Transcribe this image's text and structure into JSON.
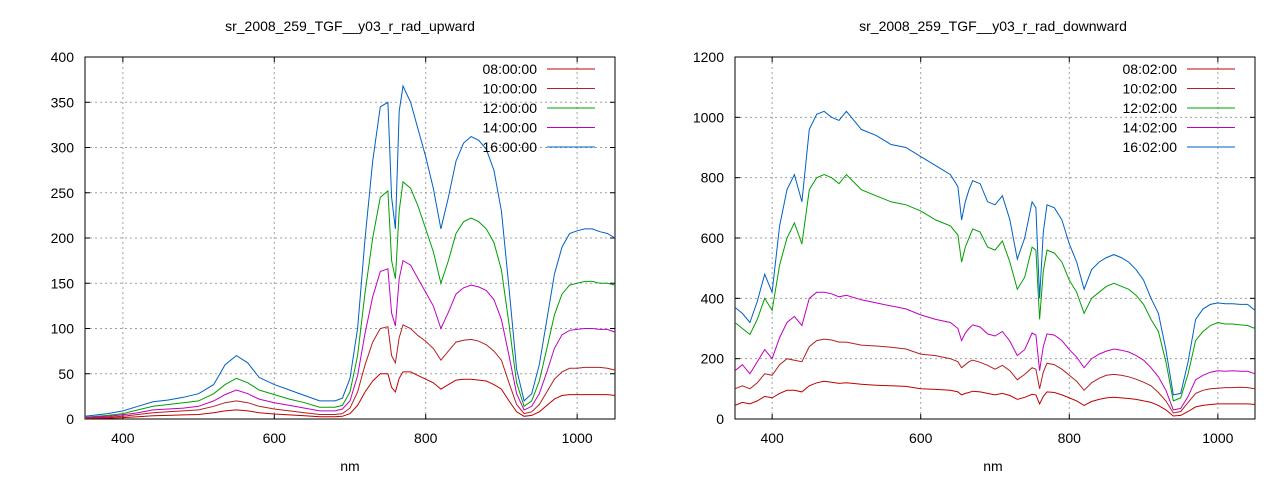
{
  "chart_data": [
    {
      "type": "line",
      "title": "sr_2008_259_TGF__y03_r_rad_upward",
      "xlabel": "nm",
      "ylabel": "",
      "xlim": [
        350,
        1050
      ],
      "ylim": [
        0,
        400
      ],
      "xticks": [
        400,
        600,
        800,
        1000
      ],
      "yticks": [
        0,
        50,
        100,
        150,
        200,
        250,
        300,
        350,
        400
      ],
      "grid": true,
      "legend_position": "top-right",
      "x": [
        350,
        380,
        400,
        420,
        440,
        460,
        480,
        500,
        520,
        535,
        550,
        565,
        580,
        600,
        620,
        640,
        660,
        680,
        690,
        700,
        710,
        720,
        730,
        740,
        750,
        755,
        760,
        765,
        770,
        780,
        790,
        800,
        810,
        820,
        830,
        840,
        850,
        860,
        870,
        880,
        890,
        900,
        910,
        920,
        930,
        940,
        950,
        960,
        970,
        980,
        990,
        1000,
        1010,
        1020,
        1030,
        1040,
        1050
      ],
      "series": [
        {
          "name": "08:00:00",
          "color": "#c00000",
          "values": [
            0.5,
            1,
            1.5,
            2.5,
            3.5,
            4,
            4.5,
            5,
            7,
            9,
            10,
            9,
            7,
            5.5,
            4.5,
            3.5,
            2.5,
            2.5,
            3,
            6,
            15,
            30,
            42,
            50,
            50,
            35,
            30,
            45,
            52,
            52,
            48,
            44,
            40,
            33,
            38,
            43,
            44,
            44,
            43,
            42,
            38,
            33,
            20,
            8,
            3,
            4,
            8,
            15,
            22,
            26,
            27,
            27,
            27,
            27,
            27,
            27,
            26
          ]
        },
        {
          "name": "10:00:00",
          "color": "#b22020",
          "values": [
            1,
            2,
            3,
            5,
            7,
            8,
            9,
            10,
            14,
            18,
            20,
            18,
            14,
            11,
            9,
            7,
            5,
            5,
            6,
            12,
            30,
            60,
            85,
            100,
            102,
            70,
            62,
            90,
            104,
            100,
            92,
            86,
            78,
            65,
            75,
            85,
            87,
            88,
            86,
            82,
            75,
            65,
            40,
            16,
            6,
            8,
            16,
            30,
            44,
            52,
            56,
            56,
            57,
            57,
            57,
            56,
            54
          ]
        },
        {
          "name": "12:00:00",
          "color": "#00a000",
          "values": [
            2,
            4,
            6,
            10,
            14,
            16,
            18,
            20,
            28,
            38,
            45,
            40,
            32,
            27,
            22,
            18,
            13,
            13,
            15,
            30,
            70,
            140,
            200,
            245,
            252,
            175,
            155,
            230,
            262,
            255,
            235,
            210,
            185,
            150,
            175,
            205,
            218,
            222,
            218,
            210,
            195,
            165,
            105,
            40,
            14,
            20,
            42,
            78,
            115,
            138,
            148,
            150,
            152,
            152,
            150,
            150,
            148
          ]
        },
        {
          "name": "14:00:00",
          "color": "#c000c0",
          "values": [
            1.5,
            3,
            4.5,
            7,
            10,
            11,
            12,
            14,
            20,
            27,
            32,
            28,
            22,
            18,
            15,
            12,
            9,
            9,
            11,
            20,
            48,
            95,
            135,
            163,
            166,
            117,
            103,
            155,
            175,
            170,
            155,
            140,
            125,
            100,
            118,
            138,
            145,
            148,
            146,
            142,
            132,
            110,
            70,
            28,
            10,
            14,
            28,
            52,
            78,
            93,
            98,
            99,
            100,
            100,
            99,
            99,
            96
          ]
        },
        {
          "name": "16:00:00",
          "color": "#0060c0",
          "values": [
            3,
            6,
            9,
            14,
            19,
            21,
            24,
            28,
            38,
            60,
            70,
            62,
            46,
            38,
            32,
            26,
            20,
            20,
            23,
            45,
            100,
            200,
            285,
            345,
            350,
            245,
            210,
            340,
            368,
            350,
            320,
            290,
            255,
            210,
            245,
            285,
            305,
            312,
            308,
            298,
            275,
            230,
            145,
            55,
            20,
            28,
            60,
            110,
            160,
            190,
            205,
            208,
            210,
            210,
            207,
            205,
            200
          ]
        }
      ]
    },
    {
      "type": "line",
      "title": "sr_2008_259_TGF__y03_r_rad_downward",
      "xlabel": "nm",
      "ylabel": "",
      "xlim": [
        350,
        1050
      ],
      "ylim": [
        0,
        1200
      ],
      "xticks": [
        400,
        600,
        800,
        1000
      ],
      "yticks": [
        0,
        200,
        400,
        600,
        800,
        1000,
        1200
      ],
      "grid": true,
      "legend_position": "top-right",
      "x": [
        350,
        360,
        370,
        380,
        390,
        400,
        410,
        420,
        430,
        440,
        450,
        460,
        470,
        480,
        490,
        500,
        520,
        540,
        560,
        580,
        600,
        620,
        640,
        650,
        655,
        660,
        665,
        670,
        680,
        690,
        700,
        710,
        720,
        730,
        740,
        750,
        755,
        760,
        765,
        770,
        780,
        790,
        800,
        810,
        820,
        830,
        840,
        850,
        860,
        870,
        880,
        890,
        900,
        910,
        920,
        930,
        940,
        950,
        960,
        970,
        980,
        990,
        1000,
        1010,
        1020,
        1030,
        1040,
        1050
      ],
      "series": [
        {
          "name": "08:02:00",
          "color": "#c00000",
          "values": [
            45,
            55,
            50,
            60,
            75,
            70,
            85,
            95,
            95,
            90,
            110,
            120,
            125,
            122,
            118,
            120,
            115,
            112,
            110,
            108,
            100,
            98,
            95,
            90,
            80,
            85,
            88,
            92,
            90,
            85,
            80,
            85,
            78,
            65,
            72,
            82,
            80,
            50,
            75,
            90,
            88,
            80,
            70,
            60,
            45,
            58,
            65,
            70,
            72,
            70,
            68,
            65,
            60,
            55,
            45,
            30,
            10,
            12,
            25,
            40,
            45,
            48,
            50,
            50,
            50,
            50,
            50,
            48
          ]
        },
        {
          "name": "10:02:00",
          "color": "#b22020",
          "values": [
            100,
            110,
            100,
            120,
            150,
            145,
            180,
            200,
            195,
            190,
            240,
            260,
            265,
            262,
            255,
            255,
            245,
            242,
            238,
            232,
            215,
            210,
            200,
            190,
            170,
            180,
            190,
            195,
            188,
            178,
            165,
            178,
            160,
            130,
            148,
            170,
            165,
            100,
            155,
            185,
            180,
            165,
            145,
            125,
            95,
            120,
            135,
            145,
            148,
            145,
            140,
            132,
            122,
            110,
            88,
            60,
            20,
            25,
            55,
            85,
            95,
            100,
            102,
            104,
            104,
            105,
            104,
            100
          ]
        },
        {
          "name": "12:02:00",
          "color": "#00a000",
          "values": [
            320,
            300,
            280,
            330,
            400,
            360,
            510,
            600,
            650,
            580,
            760,
            800,
            810,
            800,
            780,
            810,
            760,
            740,
            720,
            710,
            690,
            660,
            640,
            610,
            520,
            570,
            600,
            630,
            620,
            570,
            560,
            590,
            520,
            430,
            470,
            570,
            560,
            330,
            490,
            560,
            550,
            520,
            460,
            420,
            350,
            400,
            420,
            440,
            450,
            440,
            430,
            410,
            380,
            330,
            290,
            190,
            60,
            70,
            150,
            260,
            290,
            310,
            320,
            315,
            315,
            312,
            310,
            300
          ]
        },
        {
          "name": "14:02:00",
          "color": "#c000c0",
          "values": [
            160,
            180,
            150,
            190,
            230,
            200,
            270,
            320,
            340,
            310,
            400,
            420,
            420,
            415,
            405,
            410,
            395,
            385,
            375,
            365,
            345,
            330,
            320,
            300,
            260,
            285,
            300,
            312,
            305,
            282,
            275,
            290,
            258,
            210,
            230,
            285,
            278,
            160,
            240,
            282,
            278,
            260,
            230,
            205,
            170,
            200,
            215,
            225,
            232,
            228,
            222,
            210,
            195,
            170,
            140,
            95,
            30,
            35,
            75,
            130,
            145,
            155,
            160,
            158,
            160,
            158,
            158,
            150
          ]
        },
        {
          "name": "16:02:00",
          "color": "#0060c0",
          "values": [
            370,
            350,
            320,
            390,
            480,
            420,
            640,
            760,
            810,
            720,
            960,
            1010,
            1020,
            1000,
            990,
            1020,
            960,
            940,
            910,
            900,
            870,
            840,
            810,
            770,
            660,
            720,
            760,
            790,
            780,
            720,
            710,
            740,
            660,
            530,
            600,
            720,
            700,
            400,
            620,
            710,
            700,
            660,
            580,
            520,
            430,
            495,
            520,
            535,
            545,
            535,
            520,
            495,
            460,
            400,
            350,
            230,
            80,
            85,
            190,
            330,
            365,
            380,
            385,
            382,
            382,
            380,
            380,
            360
          ]
        }
      ]
    }
  ]
}
